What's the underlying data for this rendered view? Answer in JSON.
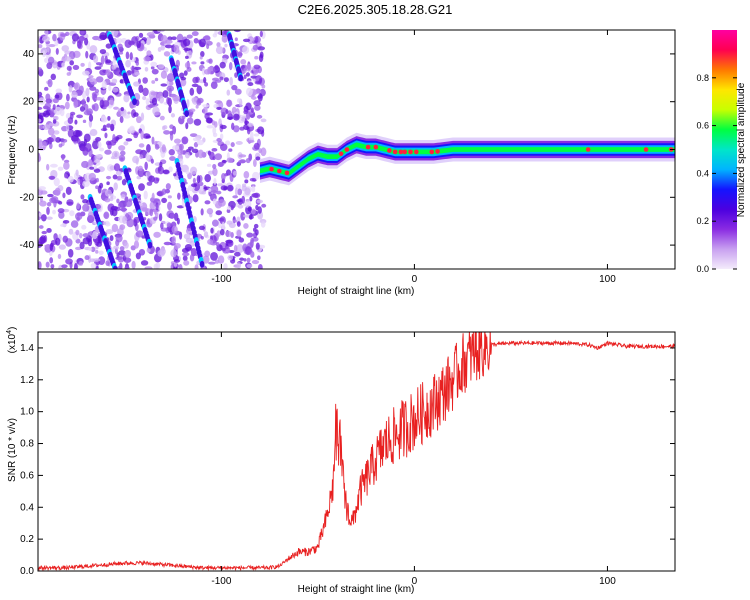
{
  "title": "C2E6.2025.305.18.28.G21",
  "chart_data": [
    {
      "type": "heatmap",
      "xlabel": "Height of straight line (km)",
      "ylabel": "Frequency (Hz)",
      "xlim": [
        -195,
        135
      ],
      "ylim": [
        -50,
        50
      ],
      "xticks": [
        -100,
        0,
        100
      ],
      "xtick_labels": [
        "-100",
        "0",
        "100"
      ],
      "yticks": [
        -40,
        -20,
        0,
        20,
        40
      ],
      "ytick_labels": [
        "-40",
        "-20",
        "0",
        "20",
        "40"
      ],
      "ridge": {
        "height_km": [
          -80,
          -75,
          -70,
          -65,
          -60,
          -55,
          -50,
          -45,
          -40,
          -35,
          -30,
          -25,
          -20,
          -15,
          -10,
          -5,
          0,
          10,
          20,
          40,
          60,
          80,
          100,
          120,
          135
        ],
        "frequency_hz": [
          -9,
          -8,
          -9,
          -10,
          -7,
          -4,
          -2,
          -3,
          -3,
          0,
          2,
          1,
          1,
          0,
          -1,
          -1,
          -1,
          -1,
          0,
          0,
          0,
          0,
          0,
          0,
          0
        ]
      },
      "colorbar": {
        "label": "Normalized spectral amplitude",
        "range": [
          0.0,
          1.0
        ],
        "ticks": [
          0.0,
          0.2,
          0.4,
          0.6,
          0.8
        ],
        "tick_labels": [
          "0.0",
          "0.2",
          "0.4",
          "0.6",
          "0.8"
        ],
        "colors": [
          "#f4ecfb",
          "#c8a0f0",
          "#8a2be2",
          "#4b00e0",
          "#1414ff",
          "#00b4ff",
          "#00e6c8",
          "#00ff40",
          "#c8ff00",
          "#ffe600",
          "#ff7800",
          "#ff0050",
          "#ff00a0"
        ]
      },
      "grid": false
    },
    {
      "type": "line",
      "xlabel": "Height of straight line (km)",
      "ylabel": "SNR (10 * v/v)",
      "y_scale_label": "(x10^4)",
      "y_scale_base": "(x10",
      "y_scale_exp": "4",
      "xlim": [
        -195,
        135
      ],
      "ylim": [
        0,
        1.5
      ],
      "xticks": [
        -100,
        0,
        100
      ],
      "xtick_labels": [
        "-100",
        "0",
        "100"
      ],
      "yticks": [
        0.0,
        0.2,
        0.4,
        0.6,
        0.8,
        1.0,
        1.2,
        1.4
      ],
      "ytick_labels": [
        "0.0",
        "0.2",
        "0.4",
        "0.6",
        "0.8",
        "1.0",
        "1.2",
        "1.4"
      ],
      "color": "#e82020",
      "series": [
        {
          "name": "SNR",
          "x": [
            -195,
            -180,
            -160,
            -150,
            -140,
            -130,
            -120,
            -110,
            -100,
            -90,
            -80,
            -75,
            -70,
            -65,
            -60,
            -55,
            -50,
            -45,
            -42,
            -40,
            -38,
            -36,
            -34,
            -32,
            -30,
            -28,
            -26,
            -24,
            -22,
            -20,
            -15,
            -10,
            -5,
            0,
            5,
            10,
            15,
            20,
            25,
            30,
            35,
            40,
            50,
            60,
            70,
            80,
            90,
            95,
            100,
            110,
            120,
            135
          ],
          "y": [
            0.02,
            0.02,
            0.04,
            0.05,
            0.05,
            0.04,
            0.03,
            0.02,
            0.02,
            0.02,
            0.02,
            0.02,
            0.03,
            0.08,
            0.12,
            0.12,
            0.15,
            0.35,
            0.55,
            0.9,
            0.7,
            0.45,
            0.35,
            0.3,
            0.4,
            0.5,
            0.55,
            0.6,
            0.65,
            0.7,
            0.8,
            0.85,
            0.9,
            0.95,
            1.0,
            1.05,
            1.12,
            1.2,
            1.3,
            1.36,
            1.4,
            1.42,
            1.43,
            1.43,
            1.43,
            1.43,
            1.42,
            1.4,
            1.43,
            1.41,
            1.41,
            1.41
          ]
        }
      ],
      "grid": false
    }
  ]
}
